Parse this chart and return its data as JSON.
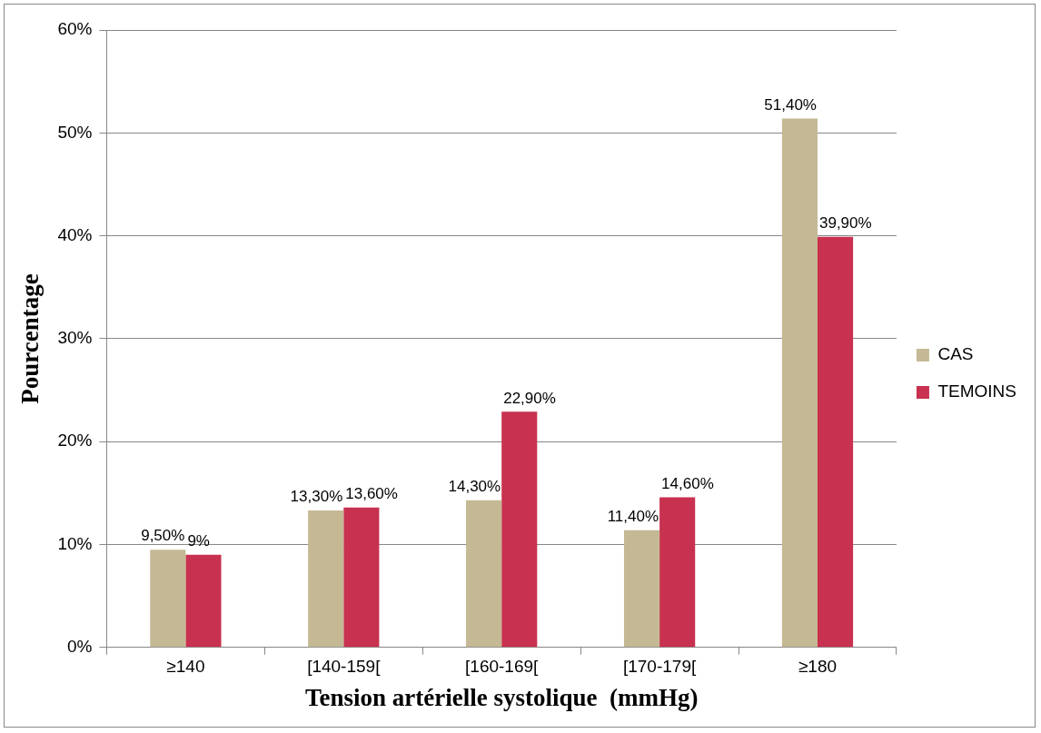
{
  "chart_data": {
    "type": "bar",
    "xlabel": "Tension artérielle systolique  (mmHg)",
    "ylabel": "Pourcentage",
    "categories": [
      "≥140",
      "[140-159[",
      "[160-169[",
      "[170-179[",
      "≥180"
    ],
    "series": [
      {
        "name": "CAS",
        "color": "#c4b994",
        "values": [
          9.5,
          13.3,
          14.3,
          11.4,
          51.4
        ],
        "value_labels": [
          "9,50%",
          "13,30%",
          "14,30%",
          "11,40%",
          "51,40%"
        ]
      },
      {
        "name": "TEMOINS",
        "color": "#c8314f",
        "values": [
          9,
          13.6,
          22.9,
          14.6,
          39.9
        ],
        "value_labels": [
          "9%",
          "13,60%",
          "22,90%",
          "14,60%",
          "39,90%"
        ]
      }
    ],
    "ylim": [
      0,
      60
    ],
    "yticks": [
      {
        "value": 0,
        "label": "0%"
      },
      {
        "value": 10,
        "label": "10%"
      },
      {
        "value": 20,
        "label": "20%"
      },
      {
        "value": 30,
        "label": "30%"
      },
      {
        "value": 40,
        "label": "40%"
      },
      {
        "value": 50,
        "label": "50%"
      },
      {
        "value": 60,
        "label": "60%"
      }
    ],
    "grid": "y",
    "legend": "right"
  }
}
